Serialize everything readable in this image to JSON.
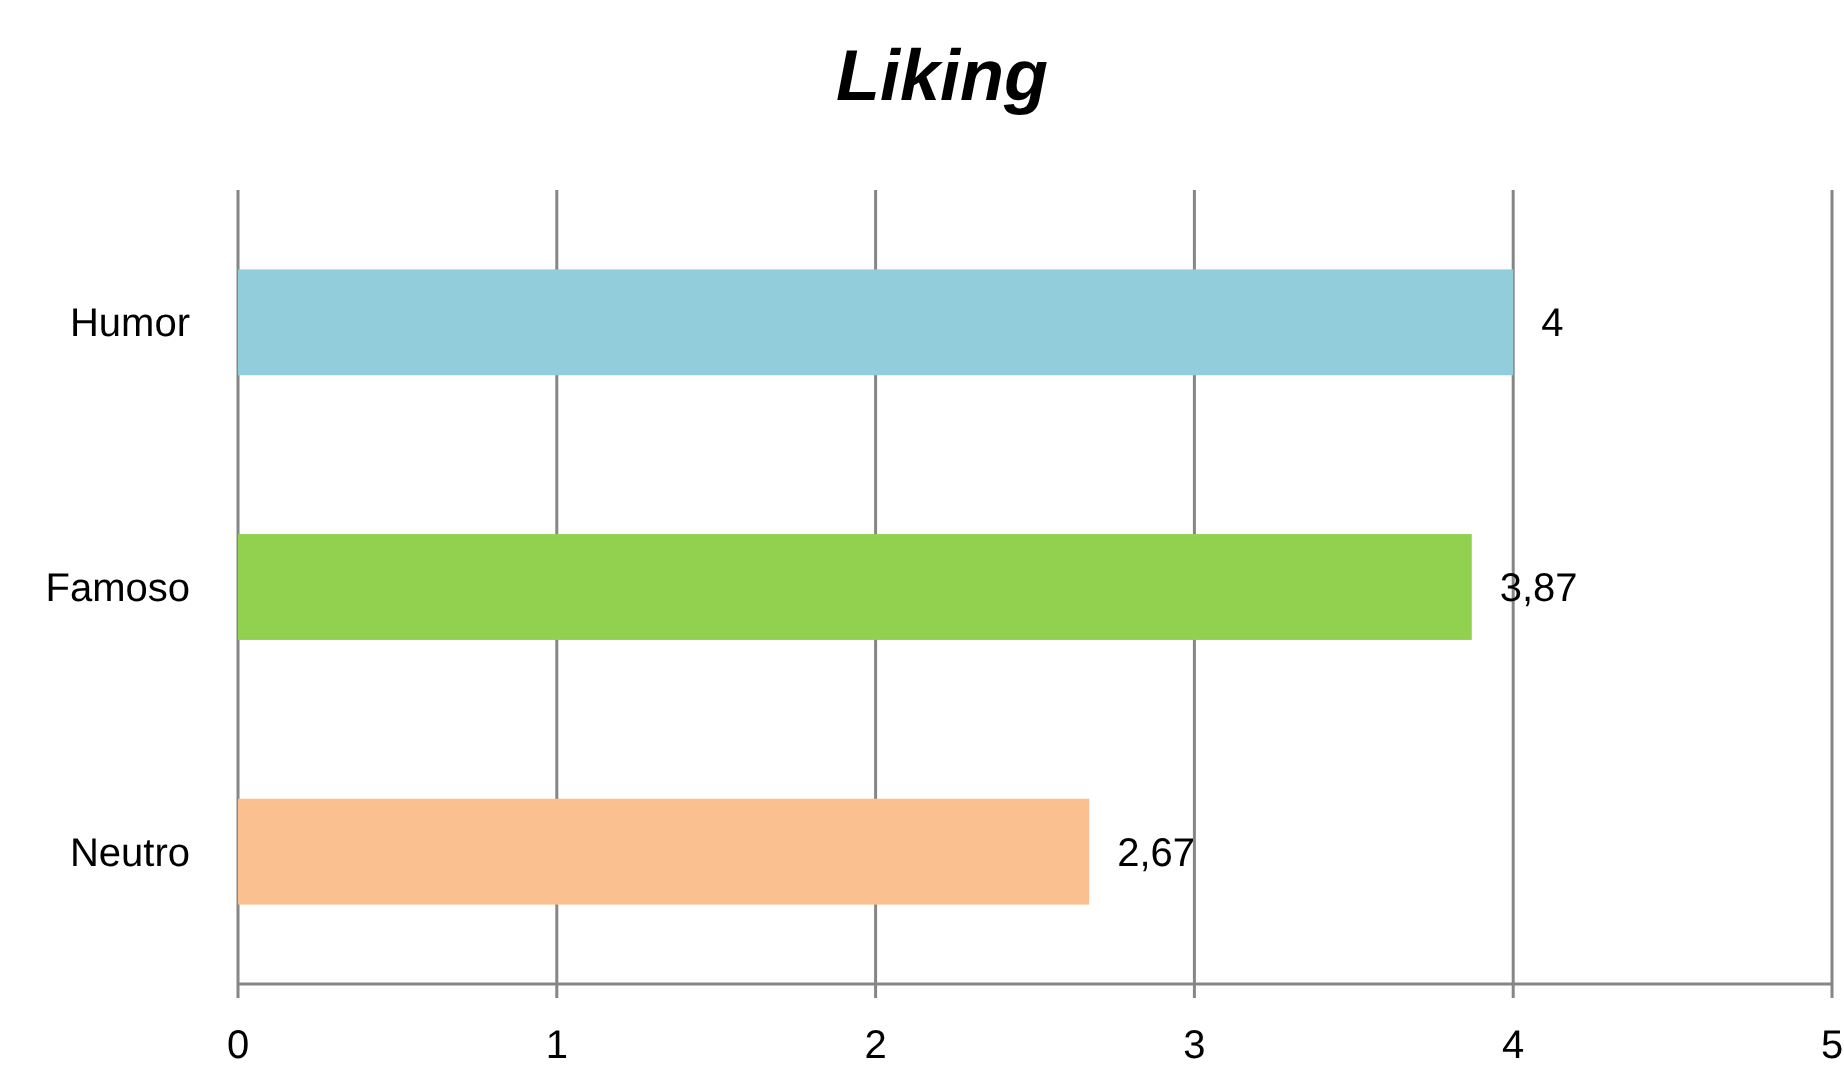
{
  "chart_data": {
    "type": "bar",
    "title": "Liking",
    "orientation": "horizontal",
    "categories": [
      "Humor",
      "Famoso",
      "Neutro"
    ],
    "values": [
      4,
      3.87,
      2.67
    ],
    "colors": [
      "#92cddc",
      "#92d050",
      "#fac090"
    ],
    "value_labels": [
      "4",
      "3,87",
      "2,67"
    ],
    "xlim": [
      0,
      5
    ],
    "xticks": [
      0,
      1,
      2,
      3,
      4,
      5
    ],
    "grid": "x"
  }
}
